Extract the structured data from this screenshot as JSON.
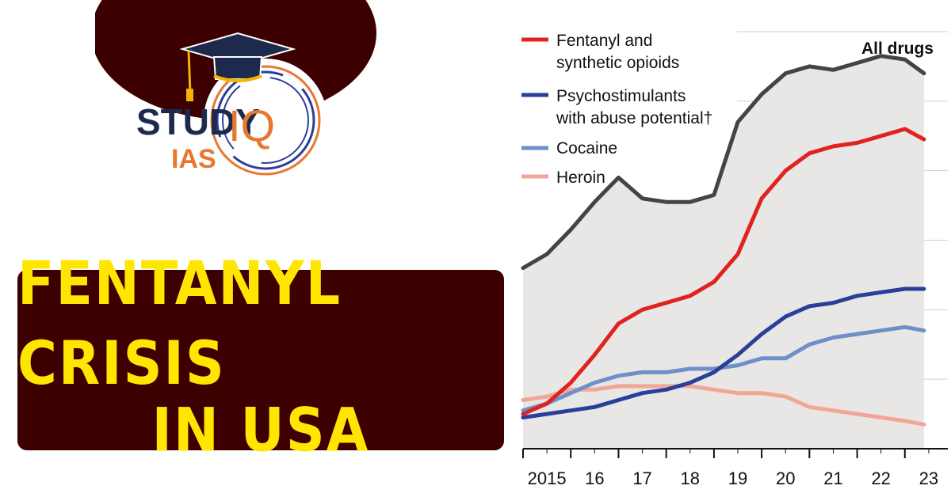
{
  "logo": {
    "study": "STUDY",
    "iq": "IQ",
    "ias": "IAS"
  },
  "headline": {
    "line1": "FENTANYL CRISIS",
    "line2": "IN USA"
  },
  "colors": {
    "fentanyl": "#e0231f",
    "psycho": "#2a3f99",
    "cocaine": "#6f8fc9",
    "heroin": "#f2a698",
    "all": "#444444",
    "title_bg": "#3d0000",
    "title_text": "#ffe600"
  },
  "chart_data": {
    "type": "line",
    "x": [
      2015.0,
      2015.5,
      2016.0,
      2016.5,
      2017.0,
      2017.5,
      2018.0,
      2018.5,
      2019.0,
      2019.5,
      2020.0,
      2020.5,
      2021.0,
      2021.5,
      2022.0,
      2022.5,
      2023.0,
      2023.4
    ],
    "xlim": [
      2015.0,
      2023.9
    ],
    "ylim": [
      0,
      120
    ],
    "tick_labels": [
      "2015",
      "16",
      "17",
      "18",
      "19",
      "20",
      "21",
      "22",
      "23"
    ],
    "grid": true,
    "legend_position": "top-left",
    "series": [
      {
        "name": "All drugs",
        "label": "All drugs",
        "key": "all",
        "fill": true,
        "values": [
          52,
          56,
          63,
          71,
          78,
          72,
          71,
          71,
          73,
          94,
          102,
          108,
          110,
          109,
          111,
          113,
          112,
          108
        ]
      },
      {
        "name": "Fentanyl and synthetic opioids",
        "key": "fentanyl",
        "values": [
          10,
          13,
          19,
          27,
          36,
          40,
          42,
          44,
          48,
          56,
          72,
          80,
          85,
          87,
          88,
          90,
          92,
          89
        ]
      },
      {
        "name": "Psychostimulants with abuse potential†",
        "key": "psycho",
        "values": [
          9,
          10,
          11,
          12,
          14,
          16,
          17,
          19,
          22,
          27,
          33,
          38,
          41,
          42,
          44,
          45,
          46,
          46
        ]
      },
      {
        "name": "Cocaine",
        "key": "cocaine",
        "values": [
          11,
          13,
          16,
          19,
          21,
          22,
          22,
          23,
          23,
          24,
          26,
          26,
          30,
          32,
          33,
          34,
          35,
          34
        ]
      },
      {
        "name": "Heroin",
        "key": "heroin",
        "values": [
          14,
          15,
          17,
          17,
          18,
          18,
          18,
          18,
          17,
          16,
          16,
          15,
          12,
          11,
          10,
          9,
          8,
          7
        ]
      }
    ]
  }
}
